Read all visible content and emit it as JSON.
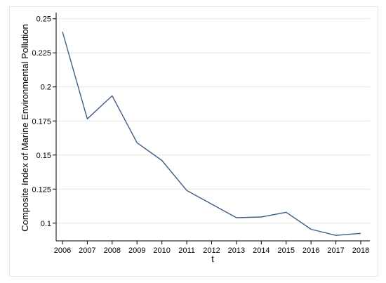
{
  "chart_data": {
    "type": "line",
    "title": "",
    "xlabel": "t",
    "ylabel": "Composite Index of Marine Environmental Pollution",
    "x": [
      2006,
      2007,
      2008,
      2009,
      2010,
      2011,
      2012,
      2013,
      2014,
      2015,
      2016,
      2017,
      2018
    ],
    "series": [
      {
        "values": [
          0.2405,
          0.1765,
          0.1935,
          0.159,
          0.146,
          0.124,
          0.114,
          0.104,
          0.1045,
          0.108,
          0.0955,
          0.091,
          0.0925
        ]
      }
    ],
    "xticks": [
      "2006",
      "2007",
      "2008",
      "2009",
      "2010",
      "2011",
      "2012",
      "2013",
      "2014",
      "2015",
      "2016",
      "2017",
      "2018"
    ],
    "yticks": [
      "0.1",
      "0.125",
      "0.15",
      "0.175",
      "0.2",
      "0.225",
      "0.25"
    ],
    "ytick_values": [
      0.1,
      0.125,
      0.15,
      0.175,
      0.2,
      0.225,
      0.25
    ],
    "xlim": [
      2006,
      2018
    ],
    "ylim": [
      0.087,
      0.2545
    ],
    "grid": true,
    "legend": "none",
    "colors": {
      "line": "#3d5f85",
      "grid": "#e6e6e6",
      "axis": "#000000"
    }
  }
}
